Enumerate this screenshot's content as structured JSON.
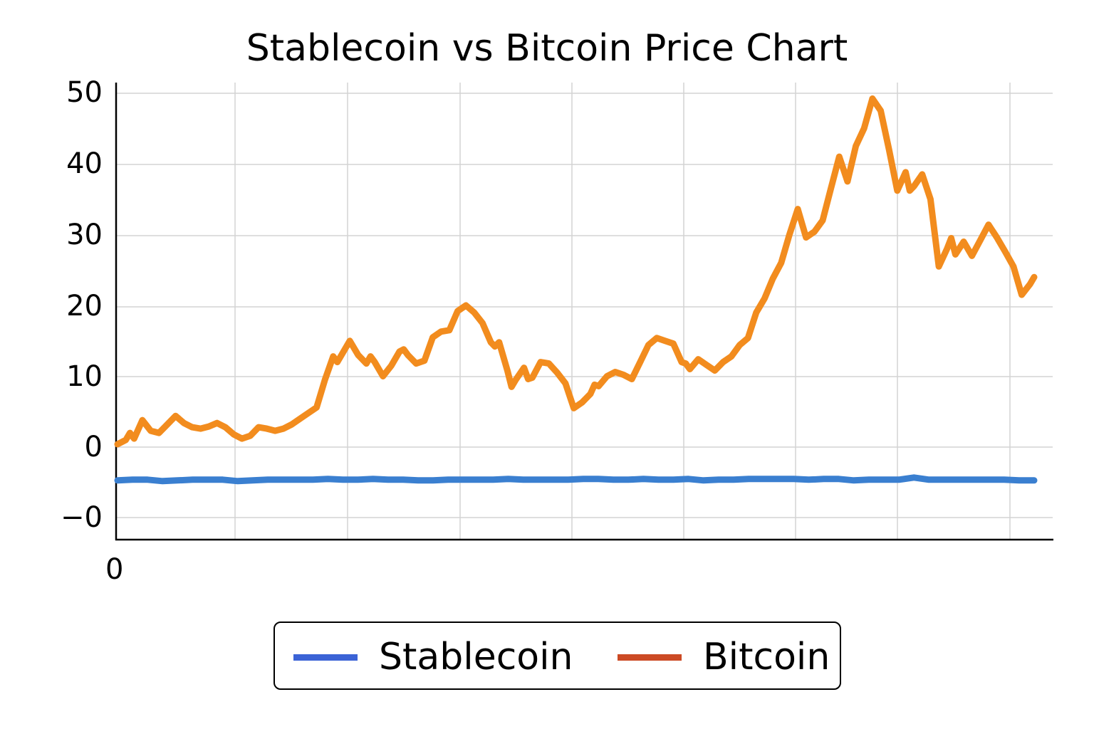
{
  "chart_data": {
    "type": "line",
    "title": "Stablecoin vs Bitcoin Price Chart",
    "xlabel": "",
    "ylabel": "",
    "x_tick_labels": [
      "0"
    ],
    "y_tick_labels": [
      "50",
      "40",
      "30",
      "20",
      "10",
      "0",
      "−0"
    ],
    "y_tick_values": [
      50,
      40,
      30,
      20,
      10,
      0,
      -10
    ],
    "ylim": [
      -13,
      51
    ],
    "grid": true,
    "legend_position": "bottom-center",
    "series": [
      {
        "name": "Stablecoin",
        "color": "#3a7fd0",
        "legend_color": "#3b63d6",
        "values": [
          -4.7,
          -4.6,
          -4.6,
          -4.8,
          -4.7,
          -4.6,
          -4.6,
          -4.6,
          -4.8,
          -4.7,
          -4.6,
          -4.6,
          -4.6,
          -4.6,
          -4.5,
          -4.6,
          -4.6,
          -4.5,
          -4.6,
          -4.6,
          -4.7,
          -4.7,
          -4.6,
          -4.6,
          -4.6,
          -4.6,
          -4.5,
          -4.6,
          -4.6,
          -4.6,
          -4.6,
          -4.5,
          -4.5,
          -4.6,
          -4.6,
          -4.5,
          -4.6,
          -4.6,
          -4.5,
          -4.7,
          -4.6,
          -4.6,
          -4.5,
          -4.5,
          -4.5,
          -4.5,
          -4.6,
          -4.5,
          -4.5,
          -4.7,
          -4.6,
          -4.6,
          -4.6,
          -4.3,
          -4.6,
          -4.6,
          -4.6,
          -4.6,
          -4.6,
          -4.6,
          -4.7,
          -4.7
        ]
      },
      {
        "name": "Bitcoin",
        "color": "#f28c1e",
        "legend_color": "#cc4a24",
        "points": [
          [
            0,
            0.4
          ],
          [
            1,
            1.0
          ],
          [
            1.5,
            2.0
          ],
          [
            2,
            1.2
          ],
          [
            3,
            3.8
          ],
          [
            4,
            2.3
          ],
          [
            5,
            2.0
          ],
          [
            6,
            3.2
          ],
          [
            7,
            4.4
          ],
          [
            8,
            3.4
          ],
          [
            9,
            2.8
          ],
          [
            10,
            2.6
          ],
          [
            11,
            2.9
          ],
          [
            12,
            3.4
          ],
          [
            13,
            2.8
          ],
          [
            14,
            1.8
          ],
          [
            15,
            1.2
          ],
          [
            16,
            1.6
          ],
          [
            17,
            2.8
          ],
          [
            18,
            2.6
          ],
          [
            19,
            2.3
          ],
          [
            20,
            2.6
          ],
          [
            21,
            3.2
          ],
          [
            22,
            4.0
          ],
          [
            23,
            4.8
          ],
          [
            24,
            5.6
          ],
          [
            25,
            9.5
          ],
          [
            26,
            12.8
          ],
          [
            26.5,
            12.0
          ],
          [
            27,
            13.0
          ],
          [
            28,
            15.0
          ],
          [
            29,
            13.0
          ],
          [
            30,
            11.8
          ],
          [
            30.5,
            12.8
          ],
          [
            31,
            12.0
          ],
          [
            32,
            10.0
          ],
          [
            33,
            11.5
          ],
          [
            34,
            13.5
          ],
          [
            34.5,
            13.8
          ],
          [
            35,
            13.0
          ],
          [
            36,
            11.8
          ],
          [
            37,
            12.2
          ],
          [
            38,
            15.5
          ],
          [
            39,
            16.3
          ],
          [
            40,
            16.5
          ],
          [
            41,
            19.2
          ],
          [
            42,
            20.0
          ],
          [
            43,
            19.0
          ],
          [
            44,
            17.5
          ],
          [
            45,
            14.8
          ],
          [
            45.5,
            14.2
          ],
          [
            46,
            14.8
          ],
          [
            47,
            10.8
          ],
          [
            47.5,
            8.5
          ],
          [
            48,
            9.5
          ],
          [
            49,
            11.2
          ],
          [
            49.5,
            9.6
          ],
          [
            50,
            9.8
          ],
          [
            51,
            12.0
          ],
          [
            52,
            11.8
          ],
          [
            53,
            10.5
          ],
          [
            54,
            9.0
          ],
          [
            55,
            5.5
          ],
          [
            56,
            6.3
          ],
          [
            57,
            7.5
          ],
          [
            57.5,
            8.8
          ],
          [
            58,
            8.6
          ],
          [
            59,
            10.0
          ],
          [
            60,
            10.6
          ],
          [
            61,
            10.2
          ],
          [
            62,
            9.6
          ],
          [
            63,
            12.0
          ],
          [
            64,
            14.4
          ],
          [
            65,
            15.4
          ],
          [
            66,
            15.0
          ],
          [
            67,
            14.6
          ],
          [
            68,
            12.0
          ],
          [
            68.5,
            11.8
          ],
          [
            69,
            11.0
          ],
          [
            70,
            12.4
          ],
          [
            71,
            11.6
          ],
          [
            72,
            10.8
          ],
          [
            73,
            12.0
          ],
          [
            74,
            12.8
          ],
          [
            75,
            14.4
          ],
          [
            76,
            15.4
          ],
          [
            77,
            19.0
          ],
          [
            78,
            21.0
          ],
          [
            79,
            23.8
          ],
          [
            80,
            26.0
          ],
          [
            81,
            30.0
          ],
          [
            82,
            33.6
          ],
          [
            83,
            29.6
          ],
          [
            84,
            30.4
          ],
          [
            84.5,
            31.2
          ],
          [
            85,
            32.0
          ],
          [
            86,
            36.5
          ],
          [
            87,
            41.0
          ],
          [
            88,
            37.5
          ],
          [
            89,
            42.5
          ],
          [
            90,
            45.0
          ],
          [
            91,
            49.2
          ],
          [
            92,
            47.5
          ],
          [
            93,
            42.0
          ],
          [
            94,
            36.2
          ],
          [
            95,
            38.8
          ],
          [
            95.5,
            36.2
          ],
          [
            96,
            36.8
          ],
          [
            97,
            38.5
          ],
          [
            98,
            35.0
          ],
          [
            99,
            25.5
          ],
          [
            100,
            28.0
          ],
          [
            100.5,
            29.5
          ],
          [
            101,
            27.2
          ],
          [
            102,
            29.0
          ],
          [
            103,
            27.0
          ],
          [
            104,
            29.2
          ],
          [
            105,
            31.4
          ],
          [
            106,
            29.6
          ],
          [
            107,
            27.6
          ],
          [
            108,
            25.5
          ],
          [
            109,
            21.5
          ],
          [
            110,
            23.0
          ],
          [
            110.5,
            24.0
          ]
        ]
      }
    ]
  },
  "legend": {
    "items": [
      {
        "label": "Stablecoin",
        "color": "#3b63d6"
      },
      {
        "label": "Bitcoin",
        "color": "#cc4a24"
      }
    ]
  }
}
